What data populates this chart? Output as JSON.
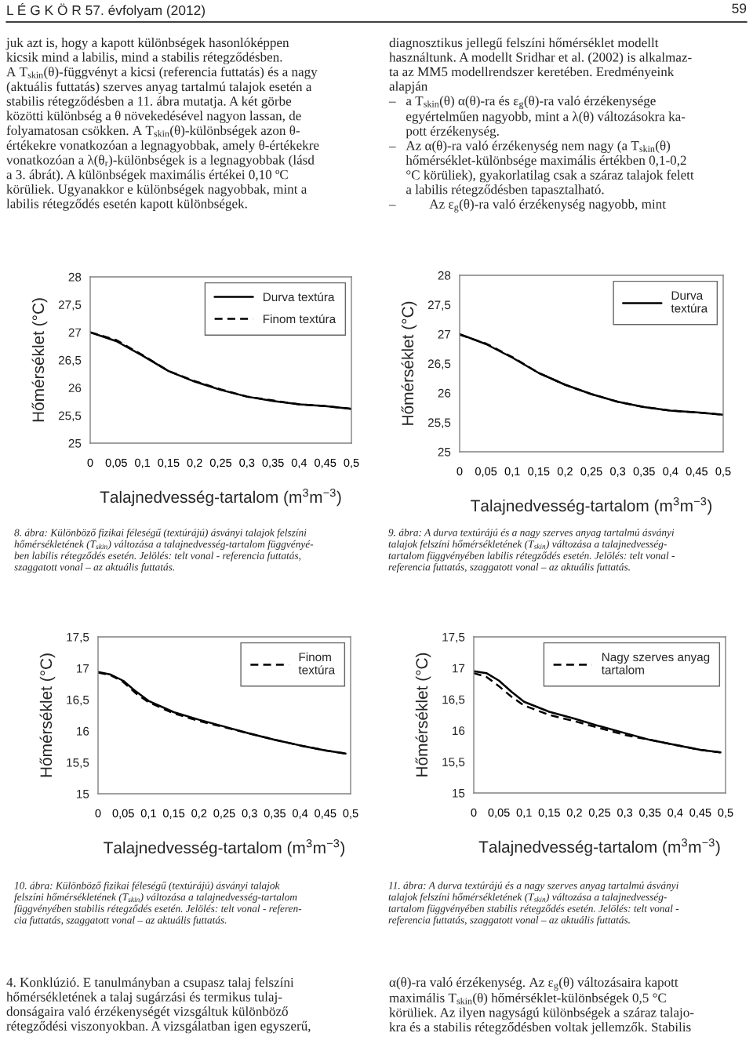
{
  "chart_data": [
    {
      "type": "line",
      "xlabel": "Talajnedvesség-tartalom (m$^{3}$m$^{−3}$)",
      "ylabel": "Hőmérséklet (°C)",
      "x": [
        0,
        0.05,
        0.1,
        0.15,
        0.2,
        0.25,
        0.3,
        0.35,
        0.4,
        0.45,
        0.5
      ],
      "series": [
        {
          "name": "Durva textúra",
          "color": "#000000",
          "line_style": "solid",
          "values": [
            27.0,
            26.84,
            26.58,
            26.3,
            26.11,
            25.96,
            25.84,
            25.76,
            25.7,
            25.67,
            25.62
          ]
        },
        {
          "name": "Finom textúra",
          "color": "#000000",
          "line_style": "dashed",
          "values": [
            27.0,
            26.86,
            26.59,
            26.3,
            26.12,
            25.97,
            25.84,
            25.77,
            25.7,
            25.67,
            25.62
          ]
        }
      ],
      "xlim": [
        0,
        0.5
      ],
      "ylim": [
        25,
        28
      ],
      "xticks": [
        0,
        {
          "value": 0.05,
          "label": "0,05"
        },
        {
          "value": 0.1,
          "label": "0,1"
        },
        {
          "value": 0.15,
          "label": "0,15"
        },
        {
          "value": 0.2,
          "label": "0,2"
        },
        {
          "value": 0.25,
          "label": "0,25"
        },
        {
          "value": 0.3,
          "label": "0,3"
        },
        {
          "value": 0.35,
          "label": "0,35"
        },
        {
          "value": 0.4,
          "label": "0,4"
        },
        {
          "value": 0.45,
          "label": "0,45"
        },
        {
          "value": 0.5,
          "label": "0,5"
        }
      ],
      "yticks": [
        25,
        {
          "value": 25.5,
          "label": "25,5"
        },
        26,
        {
          "value": 26.5,
          "label": "26,5"
        },
        27,
        {
          "value": 27.5,
          "label": "27,5"
        },
        28
      ],
      "legend": "top right",
      "annotations": [
        "L É G K Ö R 57. évfolyam (2012)",
        "59",
        "juk azt is, hogy a kapott különbségek hasonlóképpen\nkicsik mind a labilis, mind a stabilis rétegződésben.\nA T$_{skin}$(θ)-függvényt a kicsi (referencia futtatás) és a nagy\n(aktuális futtatás) szerves anyag tartalmú talajok esetén a\nstabilis rétegződésben a 11. ábra mutatja. A két görbe\nközötti különbség a θ növekedésével nagyon lassan, de\nfolyamatosan csökken. A T$_{skin}$(θ)-különbségek azon θ-\nértékekre vonatkozóan a legnagyobbak, amely θ-értékekre\nvonatkozóan a λ(θ$_{r}$)-különbségek is a legnagyobbak (lásd\na 3. ábrát). A különbségek maximális értékei 0,10 ºC\nkörüliek. Ugyanakkor e különbségek nagyobbak, mint a\nlabilis rétegződés esetén kapott különbségek.",
        "8. ábra: Különböző fizikai féleségű (textúrájú) ásványi talajok felszíni\nhőmérsékletének (T$_{skin}$) változása a talajnedvesség-tartalom függvényé-\nben labilis rétegződés esetén. Jelölés: telt vonal - referencia futtatás,\nszaggatott vonal – az aktuális futtatás."
      ]
    },
    {
      "type": "line",
      "xlabel": "Talajnedvesség-tartalom (m$^{3}$m$^{−3}$)",
      "ylabel": "Hőmérséklet (°C)",
      "x": [
        0,
        0.05,
        0.1,
        0.15,
        0.2,
        0.25,
        0.3,
        0.35,
        0.4,
        0.45,
        0.5
      ],
      "series": [
        {
          "name": "Durva\ntextúra",
          "color": "#000000",
          "line_style": "solid",
          "values": [
            27.0,
            26.83,
            26.6,
            26.34,
            26.14,
            25.98,
            25.85,
            25.76,
            25.7,
            25.67,
            25.63
          ]
        },
        {
          "color": "#000000",
          "line_style": "dashed",
          "values": [
            26.99,
            26.84,
            26.61,
            26.34,
            26.14,
            25.98,
            25.85,
            25.76,
            25.7,
            25.67,
            25.63
          ]
        }
      ],
      "xlim": [
        0,
        0.5
      ],
      "ylim": [
        25,
        28
      ],
      "xticks": [
        0,
        {
          "value": 0.05,
          "label": "0,05"
        },
        {
          "value": 0.1,
          "label": "0,1"
        },
        {
          "value": 0.15,
          "label": "0,15"
        },
        {
          "value": 0.2,
          "label": "0,2"
        },
        {
          "value": 0.25,
          "label": "0,25"
        },
        {
          "value": 0.3,
          "label": "0,3"
        },
        {
          "value": 0.35,
          "label": "0,35"
        },
        {
          "value": 0.4,
          "label": "0,4"
        },
        {
          "value": 0.45,
          "label": "0,45"
        },
        {
          "value": 0.5,
          "label": "0,5"
        }
      ],
      "yticks": [
        25,
        {
          "value": 25.5,
          "label": "25,5"
        },
        26,
        {
          "value": 26.5,
          "label": "26,5"
        },
        27,
        {
          "value": 27.5,
          "label": "27,5"
        },
        28
      ],
      "legend": "top right",
      "annotations": [
        "diagnosztikus jellegű felszíni hőmérséklet modellt\nhasználtunk. A modellt Sridhar et al. (2002) is alkalmaz-\nta az MM5 modellrendszer keretében. Eredményeink\nalapján\n–   a T$_{skin}$(θ) α(θ)-ra és ε$_{g}$(θ)-ra való érzékenysége\n     egyértelműen nagyobb, mint a λ(θ) változásokra ka-\n     pott érzékenység.\n–   Az α(θ)-ra való érzékenység nem nagy (a T$_{skin}$(θ)\n     hőmérséklet-különbsége maximális értékben 0,1-0,2\n     °C körüliek), gyakorlatilag csak a száraz talajok felett\n     a labilis rétegződésben tapasztalható.\n–          Az ε$_{g}$(θ)-ra való érzékenység nagyobb, mint",
        "9. ábra: A durva textúrájú és a nagy szerves anyag tartalmú ásványi\ntalajok felszíni hőmérsékletének (T$_{skin}$) változása a talajnedvesség-\ntartalom függvényében labilis rétegződés esetén. Jelölés: telt vonal -\nreferencia futtatás, szaggatott vonal – az aktuális futtatás."
      ]
    },
    {
      "type": "line",
      "xlabel": "Talajnedvesség-tartalom (m$^{3}$m$^{−3}$)",
      "ylabel": "Hőmérséklet (°C)",
      "x": [
        0,
        0.025,
        0.05,
        0.075,
        0.1,
        0.15,
        0.2,
        0.25,
        0.3,
        0.35,
        0.4,
        0.45,
        0.49
      ],
      "series": [
        {
          "color": "#000000",
          "line_style": "solid",
          "values": [
            16.94,
            16.9,
            16.8,
            16.63,
            16.48,
            16.3,
            16.18,
            16.07,
            15.96,
            15.86,
            15.77,
            15.69,
            15.64
          ]
        },
        {
          "name": "Finom\ntextúra",
          "color": "#000000",
          "line_style": "dashed",
          "values": [
            16.93,
            16.89,
            16.78,
            16.6,
            16.46,
            16.28,
            16.16,
            16.06,
            15.96,
            15.86,
            15.77,
            15.69,
            15.64
          ]
        }
      ],
      "xlim": [
        0,
        0.5
      ],
      "ylim": [
        15,
        17.5
      ],
      "xticks": [
        0,
        {
          "value": 0.05,
          "label": "0,05"
        },
        {
          "value": 0.1,
          "label": "0,1"
        },
        {
          "value": 0.15,
          "label": "0,15"
        },
        {
          "value": 0.2,
          "label": "0,2"
        },
        {
          "value": 0.25,
          "label": "0,25"
        },
        {
          "value": 0.3,
          "label": "0,3"
        },
        {
          "value": 0.35,
          "label": "0,35"
        },
        {
          "value": 0.4,
          "label": "0,4"
        },
        {
          "value": 0.45,
          "label": "0,45"
        },
        {
          "value": 0.5,
          "label": "0,5"
        }
      ],
      "yticks": [
        15,
        {
          "value": 15.5,
          "label": "15,5"
        },
        16,
        {
          "value": 16.5,
          "label": "16,5"
        },
        17,
        {
          "value": 17.5,
          "label": "17,5"
        }
      ],
      "legend": "top right",
      "annotations": [
        "10. ábra: Különböző fizikai féleségű (textúrájú) ásványi talajok\nfelszíni hőmérsékletének (T$_{skin}$) változása a talajnedvesség-tartalom\nfüggvényében stabilis rétegződés esetén. Jelölés: telt vonal - referen-\ncia futtatás, szaggatott vonal – az aktuális futtatás.",
        "4. Konklúzió. E tanulmányban a csupasz talaj felszíni\nhőmérsékletének a talaj sugárzási és termikus tulaj-\ndonságaira való érzékenységét vizsgáltuk különböző\nrétegződési viszonyokban. A vizsgálatban igen egyszerű,"
      ]
    },
    {
      "type": "line",
      "xlabel": "Talajnedvesség-tartalom (m$^{3}$m$^{−3}$)",
      "ylabel": "Hőmérséklet (°C)",
      "x": [
        0,
        0.025,
        0.05,
        0.075,
        0.1,
        0.15,
        0.2,
        0.25,
        0.3,
        0.35,
        0.4,
        0.45,
        0.49
      ],
      "series": [
        {
          "color": "#000000",
          "line_style": "solid",
          "values": [
            16.95,
            16.92,
            16.8,
            16.62,
            16.46,
            16.3,
            16.19,
            16.07,
            15.96,
            15.85,
            15.77,
            15.69,
            15.65
          ]
        },
        {
          "name": "Nagy szerves anyag\ntartalom",
          "color": "#000000",
          "line_style": "dashed",
          "values": [
            16.92,
            16.86,
            16.71,
            16.54,
            16.4,
            16.25,
            16.15,
            16.04,
            15.93,
            15.85,
            15.77,
            15.69,
            15.65
          ]
        }
      ],
      "xlim": [
        0,
        0.5
      ],
      "ylim": [
        15,
        17.5
      ],
      "xticks": [
        0,
        {
          "value": 0.05,
          "label": "0,05"
        },
        {
          "value": 0.1,
          "label": "0,1"
        },
        {
          "value": 0.15,
          "label": "0,15"
        },
        {
          "value": 0.2,
          "label": "0,2"
        },
        {
          "value": 0.25,
          "label": "0,25"
        },
        {
          "value": 0.3,
          "label": "0,3"
        },
        {
          "value": 0.35,
          "label": "0,35"
        },
        {
          "value": 0.4,
          "label": "0,4"
        },
        {
          "value": 0.45,
          "label": "0,45"
        },
        {
          "value": 0.5,
          "label": "0,5"
        }
      ],
      "yticks": [
        15,
        {
          "value": 15.5,
          "label": "15,5"
        },
        16,
        {
          "value": 16.5,
          "label": "16,5"
        },
        17,
        {
          "value": 17.5,
          "label": "17,5"
        }
      ],
      "legend": "top right",
      "annotations": [
        "11. ábra: A durva textúrájú és a nagy szerves anyag tartalmú ásványi\ntalajok felszíni hőmérsékletének (T$_{skin}$) változása a talajnedvesség-\ntartalom függvényében stabilis rétegződés esetén. Jelölés: telt vonal -\nreferencia futtatás, szaggatott vonal – az aktuális futtatás.",
        "α(θ)-ra való érzékenység. Az ε$_{g}$(θ) változásaira kapott\nmaximális T$_{skin}$(θ) hőmérséklet-különbségek 0,5 °C\nkörüliek. Az ilyen nagyságú különbségek a száraz talajo-\nkra és a stabilis rétegződésben voltak jellemzők. Stabilis"
      ]
    }
  ]
}
